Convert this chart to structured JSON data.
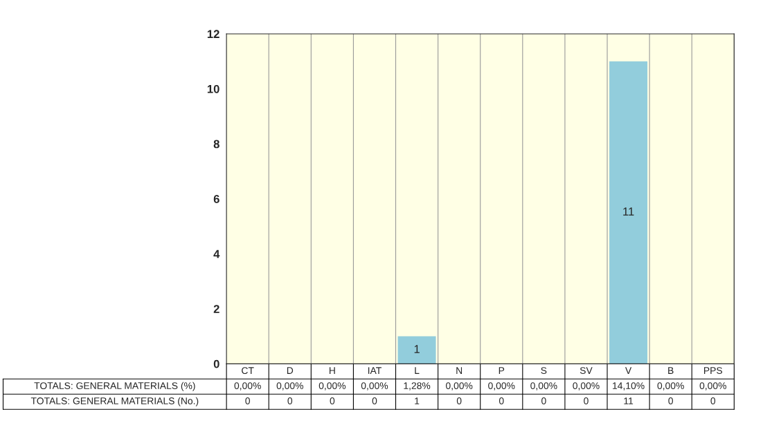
{
  "chart_data": {
    "type": "bar",
    "categories": [
      "CT",
      "D",
      "H",
      "IAT",
      "L",
      "N",
      "P",
      "S",
      "SV",
      "V",
      "B",
      "PPS"
    ],
    "series": [
      {
        "name": "TOTALS: GENERAL MATERIALS (No.)",
        "color": "#92cddc",
        "values": [
          0,
          0,
          0,
          0,
          1,
          0,
          0,
          0,
          0,
          11,
          0,
          0
        ],
        "value_labels": [
          null,
          null,
          null,
          null,
          "1",
          null,
          null,
          null,
          null,
          "11",
          null,
          null
        ]
      }
    ],
    "ylim": [
      0,
      12
    ],
    "yticks": [
      0,
      2,
      4,
      6,
      8,
      10,
      12
    ],
    "grid": "x",
    "annotations": [
      "TOTALS: GENERAL MATERIALS (%)",
      "0,00%",
      "0,00%",
      "0,00%",
      "0,00%",
      "1,28%",
      "0,00%",
      "0,00%",
      "0,00%",
      "0,00%",
      "14,10%",
      "0,00%",
      "0,00%",
      "0",
      "0",
      "0",
      "0",
      "1",
      "0",
      "0",
      "0",
      "0",
      "11",
      "0",
      "0"
    ]
  }
}
